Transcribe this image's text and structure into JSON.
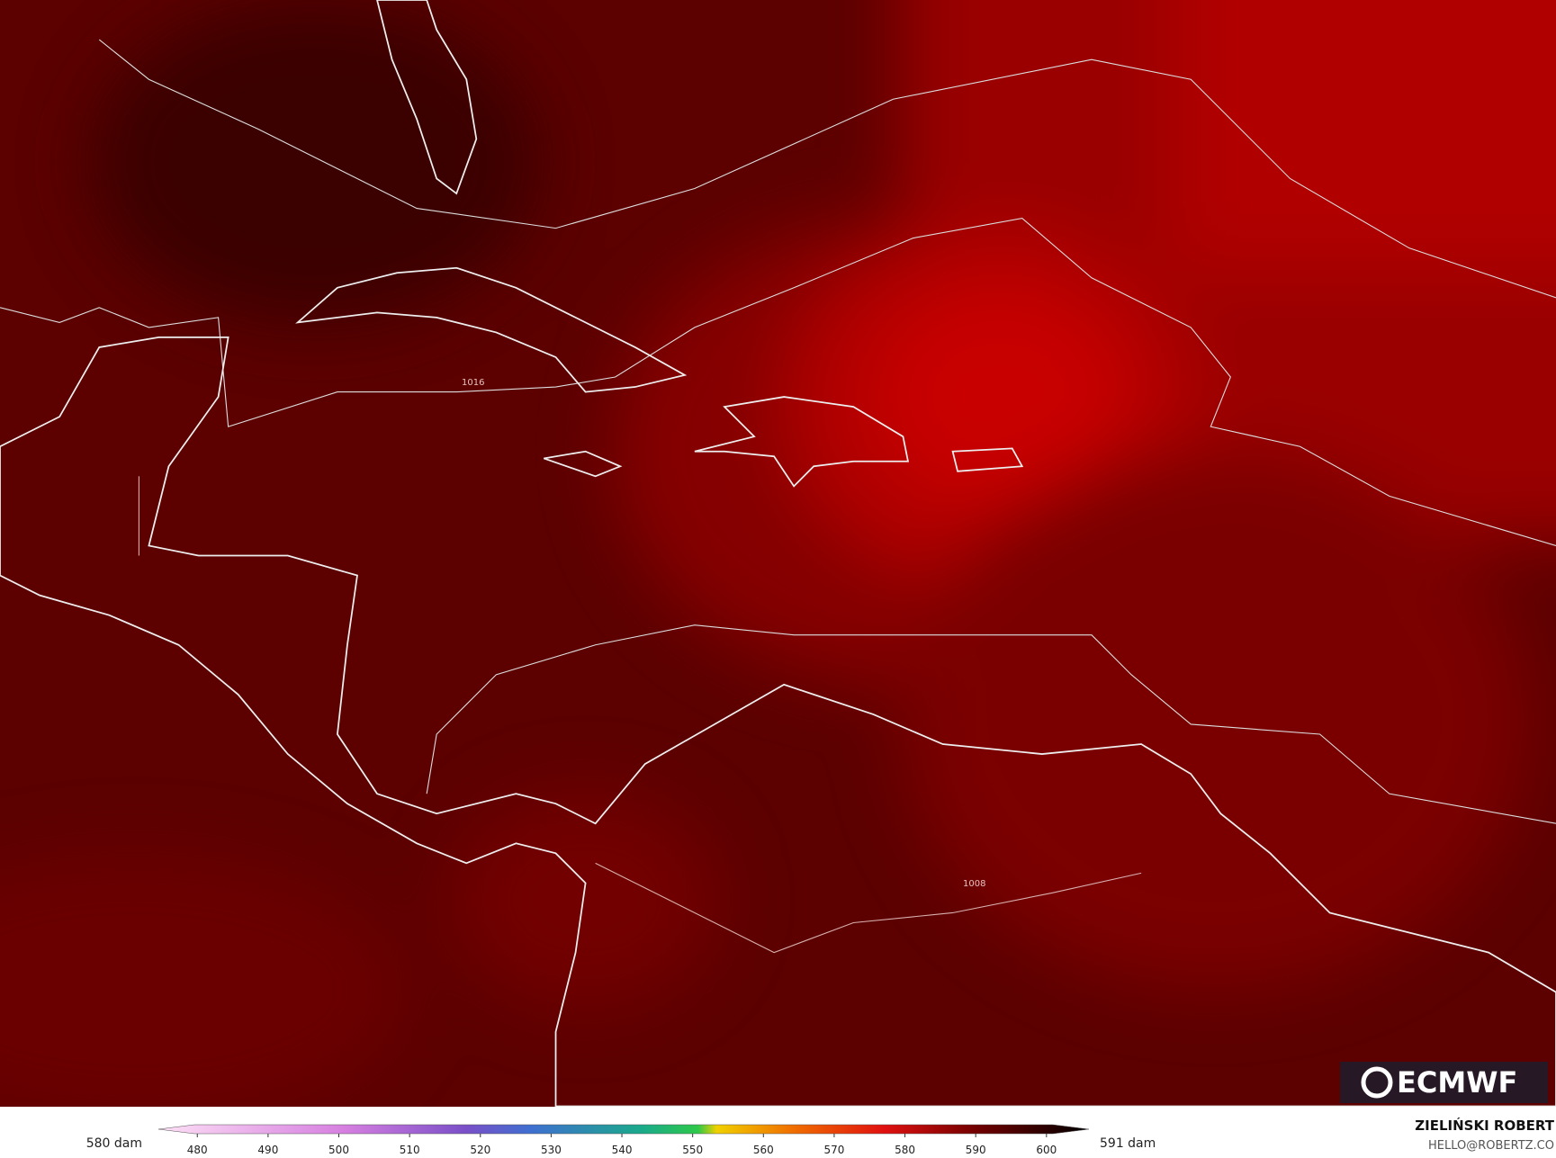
{
  "map": {
    "isobar_labels": [
      "1016",
      "1008"
    ]
  },
  "colorbar": {
    "min_label": "580 dam",
    "max_label": "591 dam",
    "lim": [
      474.5,
      606
    ],
    "ticks": [
      480,
      490,
      500,
      510,
      520,
      530,
      540,
      550,
      560,
      570,
      580,
      590,
      600
    ]
  },
  "credits": {
    "author": "ZIELIŃSKI ROBERT",
    "contact": "HELLO@ROBERTZ.CO",
    "logo": "ECMWF"
  }
}
